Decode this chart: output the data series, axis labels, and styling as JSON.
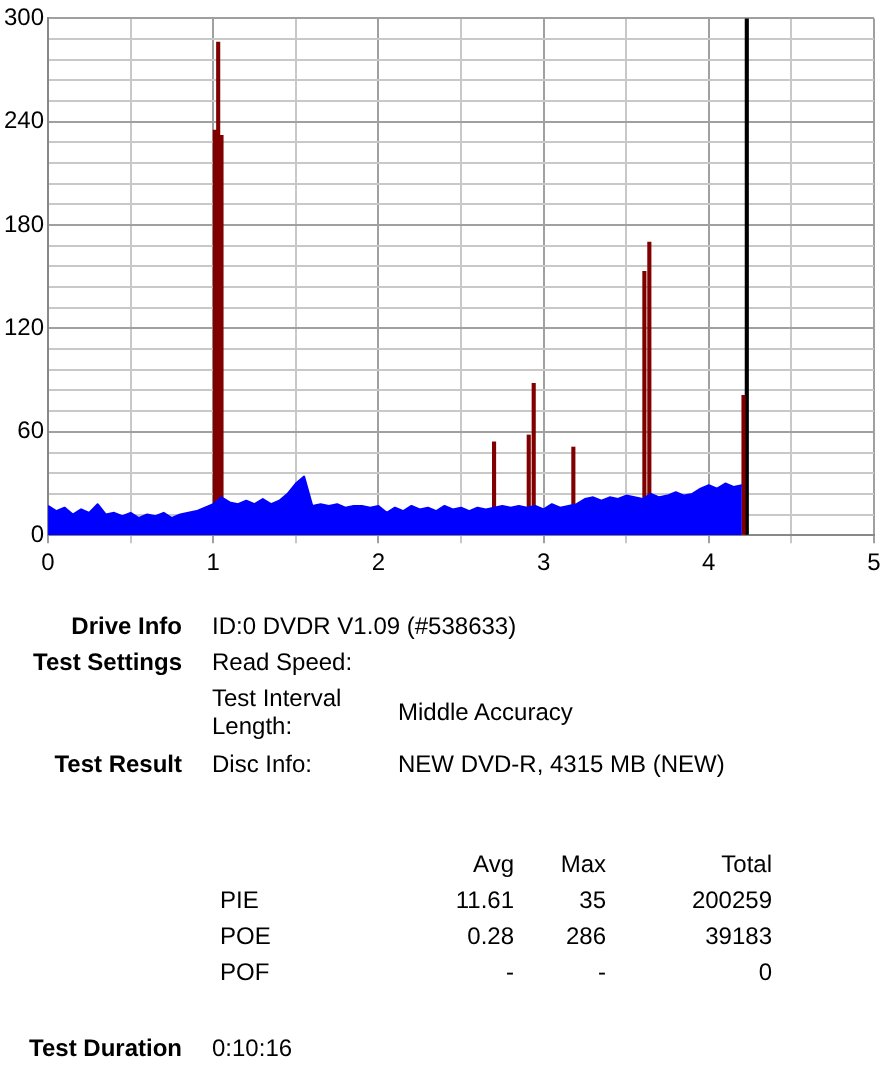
{
  "chart_data": {
    "type": "area",
    "xlim": [
      0,
      5
    ],
    "xticks": [
      0,
      {
        "value": 0.5,
        "label": null
      },
      1,
      {
        "value": 1.5,
        "label": null
      },
      2,
      {
        "value": 2.5,
        "label": null
      },
      3,
      {
        "value": 3.5,
        "label": null
      },
      4,
      {
        "value": 4.5,
        "label": null
      },
      5
    ],
    "ylim": [
      0,
      300
    ],
    "yticks": [
      0,
      {
        "value": 12,
        "label": null
      },
      {
        "value": 24,
        "label": null
      },
      {
        "value": 36,
        "label": null
      },
      {
        "value": 48,
        "label": null
      },
      60,
      {
        "value": 72,
        "label": null
      },
      {
        "value": 84,
        "label": null
      },
      {
        "value": 96,
        "label": null
      },
      {
        "value": 108,
        "label": null
      },
      120,
      {
        "value": 132,
        "label": null
      },
      {
        "value": 144,
        "label": null
      },
      {
        "value": 156,
        "label": null
      },
      {
        "value": 168,
        "label": null
      },
      180,
      {
        "value": 192,
        "label": null
      },
      {
        "value": 204,
        "label": null
      },
      {
        "value": 216,
        "label": null
      },
      {
        "value": 228,
        "label": null
      },
      240,
      {
        "value": 252,
        "label": null
      },
      {
        "value": 264,
        "label": null
      },
      {
        "value": 276,
        "label": null
      },
      {
        "value": 288,
        "label": null
      },
      300
    ],
    "grid": true,
    "legend": false,
    "series": [
      {
        "color": "#0000ff",
        "x": [
          0,
          0.05,
          0.1,
          0.15,
          0.2,
          0.25,
          0.3,
          0.35,
          0.4,
          0.45,
          0.5,
          0.55,
          0.6,
          0.65,
          0.7,
          0.75,
          0.8,
          0.85,
          0.9,
          0.95,
          1.0,
          1.05,
          1.1,
          1.15,
          1.2,
          1.25,
          1.3,
          1.35,
          1.4,
          1.45,
          1.5,
          1.55,
          1.6,
          1.65,
          1.7,
          1.75,
          1.8,
          1.85,
          1.9,
          1.95,
          2.0,
          2.05,
          2.1,
          2.15,
          2.2,
          2.25,
          2.3,
          2.35,
          2.4,
          2.45,
          2.5,
          2.55,
          2.6,
          2.65,
          2.7,
          2.75,
          2.8,
          2.85,
          2.9,
          2.95,
          3.0,
          3.05,
          3.1,
          3.15,
          3.2,
          3.25,
          3.3,
          3.35,
          3.4,
          3.45,
          3.5,
          3.55,
          3.6,
          3.65,
          3.7,
          3.75,
          3.8,
          3.85,
          3.9,
          3.95,
          4.0,
          4.05,
          4.1,
          4.15,
          4.2
        ],
        "values": [
          17,
          14,
          16,
          12,
          15,
          13,
          18,
          12,
          13,
          11,
          13,
          10,
          12,
          11,
          13,
          10,
          12,
          13,
          14,
          16,
          18,
          22,
          19,
          18,
          20,
          18,
          21,
          18,
          20,
          24,
          30,
          34,
          17,
          18,
          17,
          18,
          16,
          17,
          17,
          16,
          17,
          13,
          16,
          14,
          17,
          15,
          16,
          14,
          17,
          15,
          16,
          14,
          16,
          15,
          16,
          17,
          16,
          17,
          16,
          17,
          15,
          18,
          16,
          17,
          18,
          21,
          22,
          20,
          22,
          21,
          23,
          22,
          21,
          24,
          22,
          23,
          25,
          23,
          24,
          27,
          29,
          27,
          30,
          28,
          29
        ]
      },
      {
        "type": "bar",
        "color": "#800000",
        "x": [
          1.01,
          1.03,
          1.05,
          2.7,
          2.91,
          2.94,
          3.18,
          3.61,
          3.64,
          4.21
        ],
        "values": [
          235,
          286,
          232,
          54,
          58,
          88,
          51,
          153,
          170,
          81
        ]
      },
      {
        "type": "bar",
        "color": "#000000",
        "x": [
          4.23
        ],
        "values": [
          300
        ]
      }
    ],
    "annotations": [
      "Drive Info",
      "ID:0 DVDR V1.09 (#538633)",
      "Test Settings",
      "Read Speed:",
      "Test Interval Length:",
      "Middle Accuracy",
      "Test Result",
      "Disc Info:",
      "NEW DVD-R, 4315 MB (NEW)",
      "Avg",
      "Max",
      "Total",
      "PIE",
      "11.61",
      "35",
      "200259",
      "POE",
      "0.28",
      "286",
      "39183",
      "POF",
      "-",
      "-",
      "0",
      "Test Duration",
      "0:10:16"
    ]
  }
}
